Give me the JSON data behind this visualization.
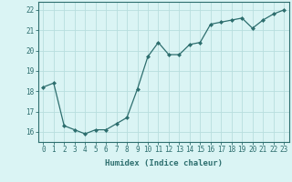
{
  "x": [
    0,
    1,
    2,
    3,
    4,
    5,
    6,
    7,
    8,
    9,
    10,
    11,
    12,
    13,
    14,
    15,
    16,
    17,
    18,
    19,
    20,
    21,
    22,
    23
  ],
  "y": [
    18.2,
    18.4,
    16.3,
    16.1,
    15.9,
    16.1,
    16.1,
    16.4,
    16.7,
    18.1,
    19.7,
    20.4,
    19.8,
    19.8,
    20.3,
    20.4,
    21.3,
    21.4,
    21.5,
    21.6,
    21.1,
    21.5,
    21.8,
    22.0
  ],
  "line_color": "#2d6e6e",
  "marker": "D",
  "marker_size": 2.0,
  "bg_color": "#daf4f4",
  "grid_color": "#b8dede",
  "xlabel": "Humidex (Indice chaleur)",
  "xlim": [
    -0.5,
    23.5
  ],
  "ylim": [
    15.5,
    22.4
  ],
  "yticks": [
    16,
    17,
    18,
    19,
    20,
    21,
    22
  ],
  "xticks": [
    0,
    1,
    2,
    3,
    4,
    5,
    6,
    7,
    8,
    9,
    10,
    11,
    12,
    13,
    14,
    15,
    16,
    17,
    18,
    19,
    20,
    21,
    22,
    23
  ],
  "xtick_labels": [
    "0",
    "1",
    "2",
    "3",
    "4",
    "5",
    "6",
    "7",
    "8",
    "9",
    "10",
    "11",
    "12",
    "13",
    "14",
    "15",
    "16",
    "17",
    "18",
    "19",
    "20",
    "21",
    "22",
    "23"
  ],
  "tick_color": "#2d6e6e",
  "spine_color": "#2d6e6e",
  "label_fontsize": 6.5,
  "tick_fontsize": 5.5,
  "linewidth": 0.9
}
